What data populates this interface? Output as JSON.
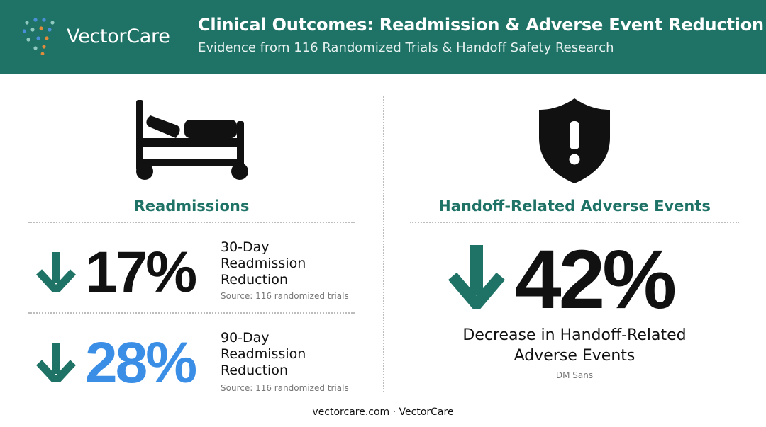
{
  "brand": {
    "name": "VectorCare",
    "dot_colors": [
      "#4a90d9",
      "#e08a3c",
      "#8fc9c0"
    ]
  },
  "header": {
    "title": "Clinical Outcomes: Readmission & Adverse Event Reduction",
    "subtitle": "Evidence from 116 Randomized Trials & Handoff Safety Research",
    "background_color": "#1e7266"
  },
  "left_panel": {
    "icon": "hospital-bed-icon",
    "title": "Readmissions",
    "stats": [
      {
        "value": "17%",
        "label_lines": [
          "30-Day",
          "Readmission",
          "Reduction"
        ],
        "source": "Source: 116 randomized trials",
        "value_color": "#111111",
        "arrow_icon": "arrow-down-icon"
      },
      {
        "value": "28%",
        "label_lines": [
          "90-Day",
          "Readmission",
          "Reduction"
        ],
        "source": "Source: 116 randomized trials",
        "value_color": "#3a8ee6",
        "arrow_icon": "arrow-down-icon"
      }
    ]
  },
  "right_panel": {
    "icon": "shield-alert-icon",
    "title": "Handoff-Related Adverse Events",
    "stat": {
      "value": "42%",
      "label_lines": [
        "Decrease in Handoff-Related",
        "Adverse Events"
      ],
      "font_note": "DM Sans",
      "arrow_icon": "arrow-down-icon"
    }
  },
  "footer": {
    "text": "vectorcare.com · VectorCare"
  },
  "colors": {
    "accent": "#1e7266",
    "arrow": "#1e7266",
    "highlight_blue": "#3a8ee6"
  }
}
